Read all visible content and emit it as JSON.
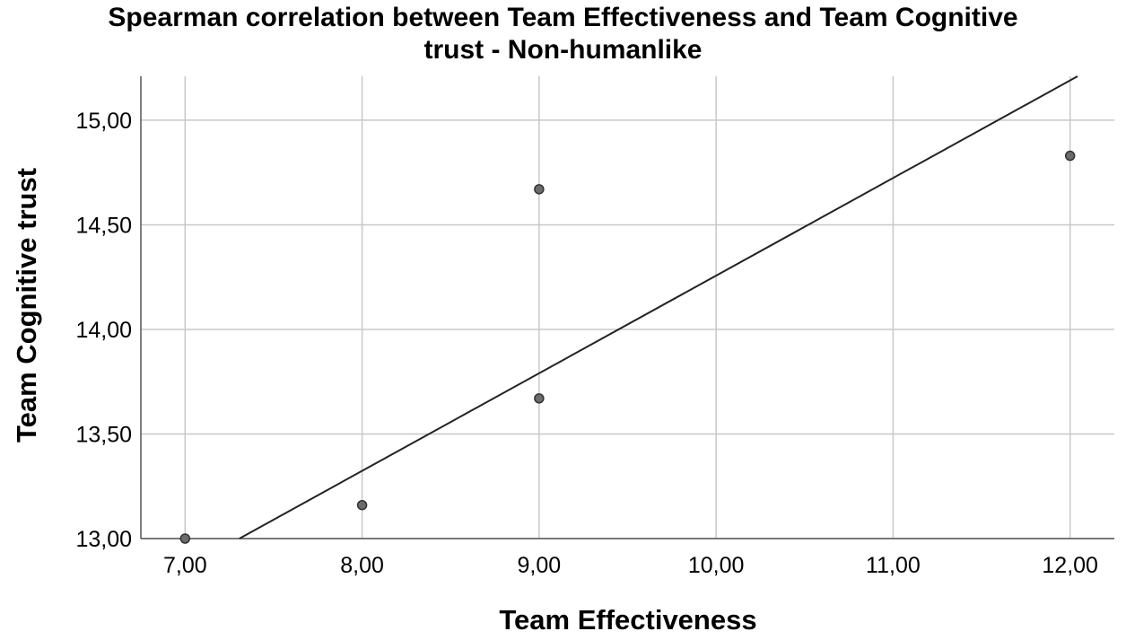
{
  "chart_data": {
    "type": "scatter",
    "title_lines": [
      "Spearman correlation between Team Effectiveness and Team Cognitive",
      "trust - Non-humanlike"
    ],
    "xlabel": "Team Effectiveness",
    "ylabel": "Team Cognitive trust",
    "xlim": [
      6.75,
      12.25
    ],
    "ylim": [
      13.0,
      15.21
    ],
    "x_ticks": [
      7,
      8,
      9,
      10,
      11,
      12
    ],
    "y_ticks": [
      13,
      13.5,
      14,
      14.5,
      15
    ],
    "x_tick_labels": [
      "7,00",
      "8,00",
      "9,00",
      "10,00",
      "11,00",
      "12,00"
    ],
    "y_tick_labels": [
      "13,00",
      "13,50",
      "14,00",
      "14,50",
      "15,00"
    ],
    "grid": true,
    "points": [
      {
        "x": 7,
        "y": 13.0
      },
      {
        "x": 8,
        "y": 13.16
      },
      {
        "x": 9,
        "y": 13.67
      },
      {
        "x": 9,
        "y": 14.67
      },
      {
        "x": 12,
        "y": 14.83
      }
    ],
    "fit_line": {
      "intercept": 9.59,
      "slope": 0.4667
    },
    "colors": {
      "point_fill": "#6b6b6b",
      "point_stroke": "#333333",
      "grid": "#c8c8c8",
      "axis": "#555555",
      "line": "#222222"
    }
  }
}
